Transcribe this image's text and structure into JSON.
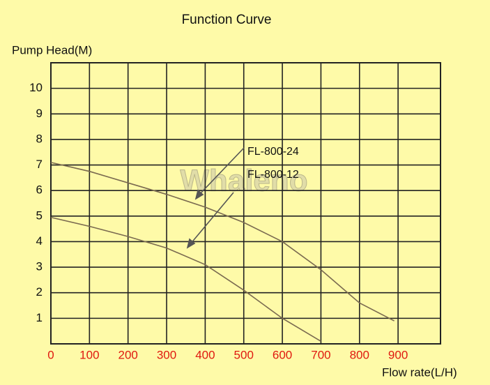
{
  "chart_data": {
    "type": "line",
    "title": "Function Curve",
    "y_label": "Pump Head(M)",
    "x_label": "Flow rate(L/H)",
    "watermark": "Whaleno",
    "xlim": [
      0,
      1010
    ],
    "ylim": [
      0,
      11
    ],
    "xticks": [
      0,
      100,
      200,
      300,
      400,
      500,
      600,
      700,
      800,
      900
    ],
    "yticks": [
      1,
      2,
      3,
      4,
      5,
      6,
      7,
      8,
      9,
      10
    ],
    "grid": true,
    "background": "#fefaa8",
    "xtick_color": "#e0190f",
    "series": [
      {
        "name": "FL-800-24",
        "color": "#7a6a50",
        "x": [
          0,
          100,
          200,
          300,
          400,
          500,
          600,
          700,
          800,
          890
        ],
        "values": [
          7.1,
          6.75,
          6.3,
          5.85,
          5.35,
          4.75,
          4.0,
          2.9,
          1.6,
          0.9
        ]
      },
      {
        "name": "FL-800-12",
        "color": "#7a6a50",
        "x": [
          0,
          100,
          200,
          300,
          400,
          500,
          600,
          700
        ],
        "values": [
          4.95,
          4.6,
          4.2,
          3.75,
          3.1,
          2.1,
          1.0,
          0.1
        ]
      }
    ]
  }
}
